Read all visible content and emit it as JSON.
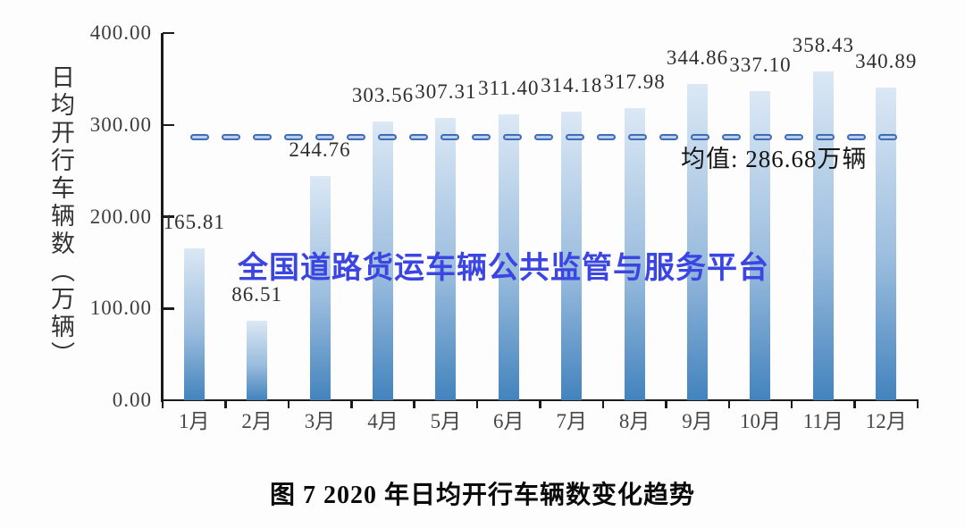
{
  "page": {
    "background": "#fdfdfd"
  },
  "chart_data": {
    "type": "bar",
    "title": "图 7 2020 年日均开行车辆数变化趋势",
    "ylabel": "日均开行车辆数（万辆）",
    "xlabel": "",
    "categories": [
      "1月",
      "2月",
      "3月",
      "4月",
      "5月",
      "6月",
      "7月",
      "8月",
      "9月",
      "10月",
      "11月",
      "12月"
    ],
    "values": [
      165.81,
      86.51,
      244.76,
      303.56,
      307.31,
      311.4,
      314.18,
      317.98,
      344.86,
      337.1,
      358.43,
      340.89
    ],
    "value_labels": [
      "165.81",
      "86.51",
      "244.76",
      "303.56",
      "307.31",
      "311.40",
      "314.18",
      "317.98",
      "344.86",
      "337.10",
      "358.43",
      "340.89"
    ],
    "y_tick_labels": [
      "400.00",
      "300.00",
      "200.00",
      "100.00",
      "0.00"
    ],
    "y_tick_values": [
      400,
      300,
      200,
      100,
      0
    ],
    "ylim": [
      0,
      400
    ],
    "grid": "off",
    "mean_line": {
      "value": 286.68,
      "label": "均值: 286.68万辆"
    },
    "watermark": "全国道路货运车辆公共监管与服务平台",
    "colors": {
      "bar_top": "#dbe8f5",
      "bar_mid": "#9bbdde",
      "bar_bottom": "#4383bd",
      "mean_dash_border": "#3f6cb4",
      "mean_dash_fill": "#b8cfe9",
      "watermark": "#3a45e2",
      "axis": "#1b1b1b"
    }
  }
}
